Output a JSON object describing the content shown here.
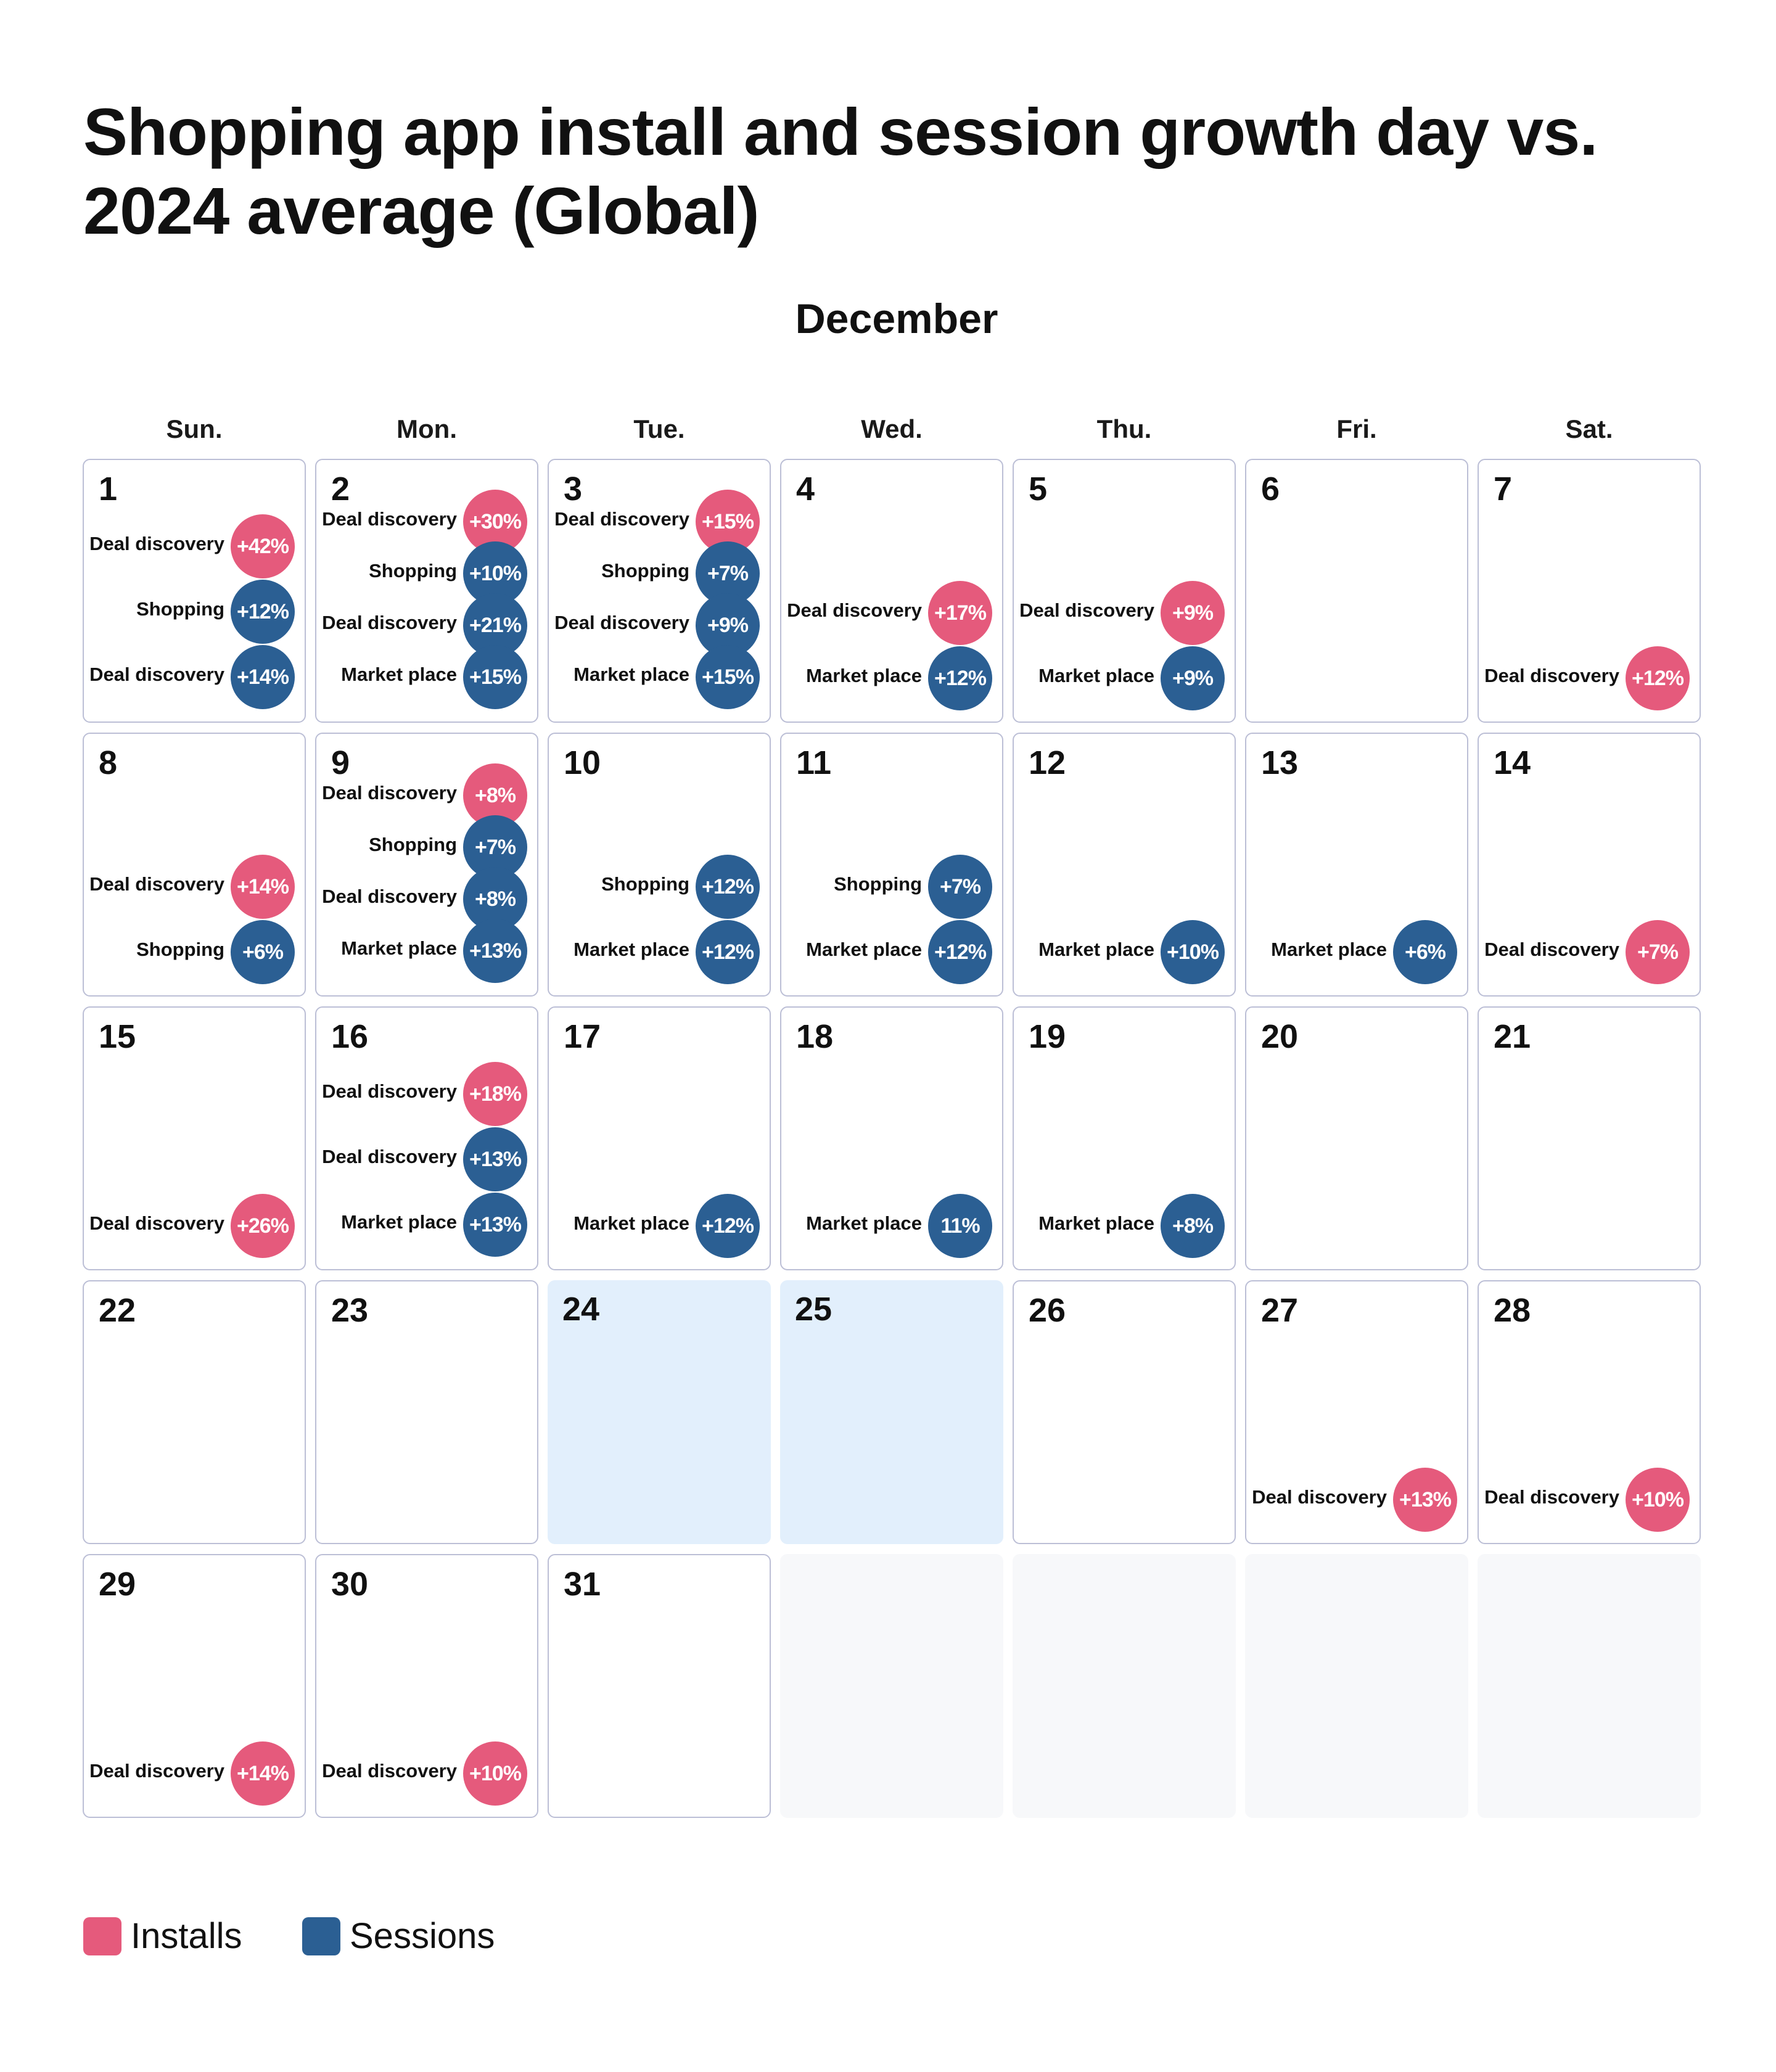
{
  "title": "Shopping app install and session growth day vs. 2024 average (Global)",
  "month": "December",
  "colors": {
    "installs": "#e55a7c",
    "sessions": "#2b5f93",
    "highlight": "#e2effc",
    "border": "#bcbfd6"
  },
  "weekdays": [
    "Sun.",
    "Mon.",
    "Tue.",
    "Wed.",
    "Thu.",
    "Fri.",
    "Sat."
  ],
  "legend": [
    {
      "label": "Installs",
      "color": "#e55a7c"
    },
    {
      "label": "Sessions",
      "color": "#2b5f93"
    }
  ],
  "chart_data": {
    "type": "table",
    "title": "Shopping app install and session growth day vs. 2024 average (Global)",
    "month": "December",
    "first_weekday_index": 0,
    "highlighted_days": [
      24,
      25
    ],
    "days": [
      {
        "day": 1,
        "entries": [
          {
            "label": "Deal discovery",
            "value": "+42%",
            "metric": "Installs"
          },
          {
            "label": "Shopping",
            "value": "+12%",
            "metric": "Sessions"
          },
          {
            "label": "Deal discovery",
            "value": "+14%",
            "metric": "Sessions"
          }
        ]
      },
      {
        "day": 2,
        "entries": [
          {
            "label": "Deal discovery",
            "value": "+30%",
            "metric": "Installs"
          },
          {
            "label": "Shopping",
            "value": "+10%",
            "metric": "Sessions"
          },
          {
            "label": "Deal discovery",
            "value": "+21%",
            "metric": "Sessions"
          },
          {
            "label": "Market place",
            "value": "+15%",
            "metric": "Sessions"
          }
        ]
      },
      {
        "day": 3,
        "entries": [
          {
            "label": "Deal discovery",
            "value": "+15%",
            "metric": "Installs"
          },
          {
            "label": "Shopping",
            "value": "+7%",
            "metric": "Sessions"
          },
          {
            "label": "Deal discovery",
            "value": "+9%",
            "metric": "Sessions"
          },
          {
            "label": "Market place",
            "value": "+15%",
            "metric": "Sessions"
          }
        ]
      },
      {
        "day": 4,
        "entries": [
          {
            "label": "Deal discovery",
            "value": "+17%",
            "metric": "Installs"
          },
          {
            "label": "Market place",
            "value": "+12%",
            "metric": "Sessions"
          }
        ]
      },
      {
        "day": 5,
        "entries": [
          {
            "label": "Deal discovery",
            "value": "+9%",
            "metric": "Installs"
          },
          {
            "label": "Market place",
            "value": "+9%",
            "metric": "Sessions"
          }
        ]
      },
      {
        "day": 6,
        "entries": []
      },
      {
        "day": 7,
        "entries": [
          {
            "label": "Deal discovery",
            "value": "+12%",
            "metric": "Installs"
          }
        ]
      },
      {
        "day": 8,
        "entries": [
          {
            "label": "Deal discovery",
            "value": "+14%",
            "metric": "Installs"
          },
          {
            "label": "Shopping",
            "value": "+6%",
            "metric": "Sessions"
          }
        ]
      },
      {
        "day": 9,
        "entries": [
          {
            "label": "Deal discovery",
            "value": "+8%",
            "metric": "Installs"
          },
          {
            "label": "Shopping",
            "value": "+7%",
            "metric": "Sessions"
          },
          {
            "label": "Deal discovery",
            "value": "+8%",
            "metric": "Sessions"
          },
          {
            "label": "Market place",
            "value": "+13%",
            "metric": "Sessions"
          }
        ]
      },
      {
        "day": 10,
        "entries": [
          {
            "label": "Shopping",
            "value": "+12%",
            "metric": "Sessions"
          },
          {
            "label": "Market place",
            "value": "+12%",
            "metric": "Sessions"
          }
        ]
      },
      {
        "day": 11,
        "entries": [
          {
            "label": "Shopping",
            "value": "+7%",
            "metric": "Sessions"
          },
          {
            "label": "Market place",
            "value": "+12%",
            "metric": "Sessions"
          }
        ]
      },
      {
        "day": 12,
        "entries": [
          {
            "label": "Market place",
            "value": "+10%",
            "metric": "Sessions"
          }
        ]
      },
      {
        "day": 13,
        "entries": [
          {
            "label": "Market place",
            "value": "+6%",
            "metric": "Sessions"
          }
        ]
      },
      {
        "day": 14,
        "entries": [
          {
            "label": "Deal discovery",
            "value": "+7%",
            "metric": "Installs"
          }
        ]
      },
      {
        "day": 15,
        "entries": [
          {
            "label": "Deal discovery",
            "value": "+26%",
            "metric": "Installs"
          }
        ]
      },
      {
        "day": 16,
        "entries": [
          {
            "label": "Deal discovery",
            "value": "+18%",
            "metric": "Installs"
          },
          {
            "label": "Deal discovery",
            "value": "+13%",
            "metric": "Sessions"
          },
          {
            "label": "Market place",
            "value": "+13%",
            "metric": "Sessions"
          }
        ]
      },
      {
        "day": 17,
        "entries": [
          {
            "label": "Market place",
            "value": "+12%",
            "metric": "Sessions"
          }
        ]
      },
      {
        "day": 18,
        "entries": [
          {
            "label": "Market place",
            "value": "11%",
            "metric": "Sessions"
          }
        ]
      },
      {
        "day": 19,
        "entries": [
          {
            "label": "Market place",
            "value": "+8%",
            "metric": "Sessions"
          }
        ]
      },
      {
        "day": 20,
        "entries": []
      },
      {
        "day": 21,
        "entries": []
      },
      {
        "day": 22,
        "entries": []
      },
      {
        "day": 23,
        "entries": []
      },
      {
        "day": 24,
        "entries": []
      },
      {
        "day": 25,
        "entries": []
      },
      {
        "day": 26,
        "entries": []
      },
      {
        "day": 27,
        "entries": [
          {
            "label": "Deal discovery",
            "value": "+13%",
            "metric": "Installs"
          }
        ]
      },
      {
        "day": 28,
        "entries": [
          {
            "label": "Deal discovery",
            "value": "+10%",
            "metric": "Installs"
          }
        ]
      },
      {
        "day": 29,
        "entries": [
          {
            "label": "Deal discovery",
            "value": "+14%",
            "metric": "Installs"
          }
        ]
      },
      {
        "day": 30,
        "entries": [
          {
            "label": "Deal discovery",
            "value": "+10%",
            "metric": "Installs"
          }
        ]
      },
      {
        "day": 31,
        "entries": []
      }
    ]
  }
}
